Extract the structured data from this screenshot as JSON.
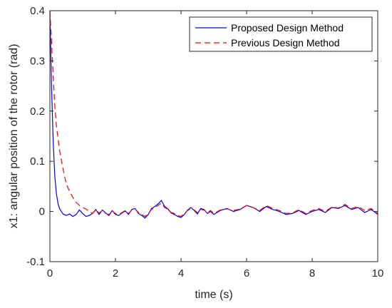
{
  "chart_data": {
    "type": "line",
    "title": "",
    "xlabel": "time (s)",
    "ylabel": "x1: angular position of the rotor (rad)",
    "xlim": [
      0,
      10
    ],
    "ylim": [
      -0.1,
      0.4
    ],
    "xticks": [
      0,
      2,
      4,
      6,
      8,
      10
    ],
    "yticks": [
      -0.1,
      0,
      0.1,
      0.2,
      0.3,
      0.4
    ],
    "xtick_labels": [
      "0",
      "2",
      "4",
      "6",
      "8",
      "10"
    ],
    "ytick_labels": [
      "-0.1",
      "0",
      "0.1",
      "0.2",
      "0.3",
      "0.4"
    ],
    "grid": false,
    "legend_position": "top-right",
    "series": [
      {
        "name": "Proposed Design Method",
        "color": "#0000ff",
        "style": "solid",
        "x": [
          0,
          0.05,
          0.1,
          0.15,
          0.2,
          0.25,
          0.3,
          0.35,
          0.4,
          0.5,
          0.6,
          0.7,
          0.8,
          0.9,
          1.0,
          1.1,
          1.2,
          1.3,
          1.4,
          1.5,
          1.6,
          1.7,
          1.8,
          1.9,
          2.0,
          2.1,
          2.2,
          2.3,
          2.4,
          2.5,
          2.6,
          2.7,
          2.8,
          2.9,
          3.0,
          3.1,
          3.2,
          3.3,
          3.4,
          3.5,
          3.6,
          3.7,
          3.8,
          3.9,
          4.0,
          4.1,
          4.2,
          4.3,
          4.4,
          4.5,
          4.6,
          4.7,
          4.8,
          4.9,
          5.0,
          5.2,
          5.4,
          5.6,
          5.8,
          6.0,
          6.2,
          6.4,
          6.6,
          6.8,
          7.0,
          7.2,
          7.4,
          7.6,
          7.8,
          8.0,
          8.2,
          8.4,
          8.6,
          8.8,
          9.0,
          9.2,
          9.4,
          9.6,
          9.8,
          10.0
        ],
        "y": [
          0.4,
          0.25,
          0.14,
          0.07,
          0.035,
          0.015,
          0.005,
          0.0,
          -0.005,
          -0.008,
          -0.005,
          -0.01,
          -0.006,
          0.003,
          -0.004,
          -0.01,
          -0.008,
          -0.004,
          0.004,
          -0.006,
          0.003,
          -0.003,
          -0.008,
          0.002,
          -0.006,
          -0.008,
          -0.003,
          0.001,
          -0.006,
          0.004,
          0.006,
          -0.004,
          -0.008,
          -0.013,
          -0.006,
          0.006,
          0.01,
          0.015,
          0.022,
          0.01,
          0.005,
          -0.003,
          -0.006,
          -0.01,
          -0.012,
          -0.006,
          0.003,
          0.008,
          0.002,
          -0.005,
          0.006,
          0.004,
          -0.004,
          0.0,
          -0.006,
          0.002,
          0.006,
          0.0,
          0.004,
          0.012,
          0.008,
          0.0,
          0.01,
          0.004,
          0.0,
          -0.006,
          -0.004,
          0.002,
          -0.006,
          0.0,
          0.004,
          -0.002,
          0.008,
          0.006,
          0.012,
          0.004,
          0.008,
          -0.002,
          0.004,
          -0.006
        ]
      },
      {
        "name": "Previous Design Method",
        "color": "#ff0000",
        "style": "dashed",
        "x": [
          0,
          0.05,
          0.1,
          0.15,
          0.2,
          0.3,
          0.4,
          0.5,
          0.6,
          0.7,
          0.8,
          0.9,
          1.0,
          1.1,
          1.2,
          1.3,
          1.4,
          1.5,
          1.6,
          1.7,
          1.8,
          1.9,
          2.0,
          2.1,
          2.2,
          2.3,
          2.4,
          2.5,
          2.6,
          2.7,
          2.8,
          2.9,
          3.0,
          3.1,
          3.2,
          3.3,
          3.4,
          3.5,
          3.6,
          3.7,
          3.8,
          3.9,
          4.0,
          4.1,
          4.2,
          4.3,
          4.4,
          4.5,
          4.6,
          4.7,
          4.8,
          4.9,
          5.0,
          5.2,
          5.4,
          5.6,
          5.8,
          6.0,
          6.2,
          6.4,
          6.6,
          6.8,
          7.0,
          7.2,
          7.4,
          7.6,
          7.8,
          8.0,
          8.2,
          8.4,
          8.6,
          8.8,
          9.0,
          9.2,
          9.4,
          9.6,
          9.8,
          10.0
        ],
        "y": [
          0.4,
          0.34,
          0.27,
          0.21,
          0.17,
          0.12,
          0.085,
          0.055,
          0.04,
          0.028,
          0.018,
          0.012,
          0.008,
          0.005,
          0.0,
          -0.004,
          0.003,
          -0.003,
          0.002,
          -0.004,
          -0.006,
          0.001,
          -0.004,
          -0.006,
          -0.002,
          0.002,
          -0.004,
          0.003,
          0.005,
          -0.002,
          -0.006,
          -0.01,
          -0.004,
          0.004,
          0.008,
          0.012,
          0.017,
          0.008,
          0.004,
          -0.002,
          -0.004,
          -0.008,
          -0.01,
          -0.004,
          0.002,
          0.006,
          0.003,
          -0.002,
          0.004,
          0.003,
          -0.002,
          0.002,
          -0.004,
          0.003,
          0.005,
          0.002,
          0.005,
          0.012,
          0.008,
          0.002,
          0.012,
          0.006,
          0.002,
          -0.004,
          -0.003,
          0.004,
          -0.004,
          0.002,
          0.006,
          0.0,
          0.009,
          0.007,
          0.014,
          0.006,
          0.01,
          0.002,
          0.006,
          -0.004
        ]
      }
    ]
  }
}
